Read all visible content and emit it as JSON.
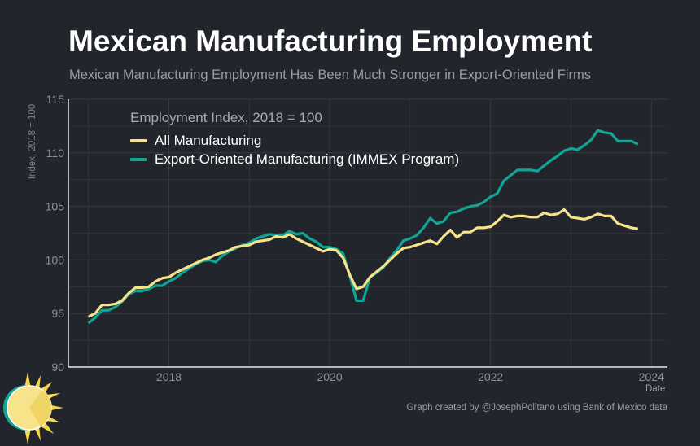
{
  "header": {
    "title": "Mexican Manufacturing Employment",
    "subtitle": "Mexican Manufacturing Employment Has Been Much Stronger in Export-Oriented Firms"
  },
  "footer": {
    "credit": "Graph created by @JosephPolitano using Bank of Mexico data"
  },
  "chart_data": {
    "type": "line",
    "title": "Mexican Manufacturing Employment",
    "subtitle": "Mexican Manufacturing Employment Has Been Much Stronger in Export-Oriented Firms",
    "xlabel": "Date",
    "ylabel": "Index, 2018 = 100",
    "legend_title": "Employment Index, 2018 = 100",
    "legend_position": "top-left",
    "grid": true,
    "x_start": "2017-01",
    "x_frequency": "monthly",
    "xlim": [
      2016.75,
      2024.2
    ],
    "ylim": [
      90,
      115
    ],
    "x_ticks": [
      2018,
      2020,
      2022,
      2024
    ],
    "x_tick_labels": [
      "2018",
      "2020",
      "2022",
      "2024"
    ],
    "y_ticks": [
      90,
      95,
      100,
      105,
      110,
      115
    ],
    "y_tick_labels": [
      "90",
      "95",
      "100",
      "105",
      "110",
      "115"
    ],
    "series": [
      {
        "name": "All Manufacturing",
        "color": "#f7e38a",
        "values": [
          94.7,
          95.0,
          95.8,
          95.8,
          95.9,
          96.2,
          96.9,
          97.4,
          97.4,
          97.5,
          98.0,
          98.3,
          98.4,
          98.8,
          99.1,
          99.4,
          99.7,
          100.0,
          100.2,
          100.5,
          100.7,
          100.9,
          101.2,
          101.3,
          101.4,
          101.7,
          101.8,
          101.9,
          102.2,
          102.1,
          102.4,
          102.0,
          101.7,
          101.4,
          101.1,
          100.8,
          101.0,
          100.9,
          100.2,
          98.6,
          97.3,
          97.5,
          98.4,
          98.9,
          99.4,
          100.0,
          100.6,
          101.1,
          101.2,
          101.4,
          101.6,
          101.8,
          101.5,
          102.2,
          102.8,
          102.1,
          102.6,
          102.6,
          103.0,
          103.0,
          103.1,
          103.6,
          104.2,
          104.0,
          104.1,
          104.1,
          104.0,
          104.0,
          104.4,
          104.2,
          104.3,
          104.7,
          104.0,
          103.9,
          103.8,
          104.0,
          104.3,
          104.1,
          104.1,
          103.4,
          103.2,
          103.0,
          102.9
        ]
      },
      {
        "name": "Export-Oriented Manufacturing (IMMEX Program)",
        "color": "#12a596",
        "values": [
          94.1,
          94.6,
          95.3,
          95.3,
          95.6,
          96.1,
          96.8,
          97.1,
          97.1,
          97.3,
          97.6,
          97.6,
          98.0,
          98.3,
          98.8,
          99.2,
          99.6,
          99.9,
          100.0,
          99.8,
          100.4,
          100.8,
          101.1,
          101.4,
          101.6,
          102.0,
          102.2,
          102.4,
          102.3,
          102.3,
          102.7,
          102.4,
          102.5,
          102.0,
          101.7,
          101.2,
          101.2,
          101.0,
          100.6,
          98.5,
          96.2,
          96.2,
          98.4,
          98.8,
          99.3,
          100.2,
          100.9,
          101.8,
          102.0,
          102.3,
          103.0,
          103.9,
          103.4,
          103.6,
          104.4,
          104.5,
          104.8,
          105.0,
          105.1,
          105.4,
          105.9,
          106.2,
          107.4,
          107.9,
          108.4,
          108.4,
          108.4,
          108.3,
          108.8,
          109.3,
          109.7,
          110.2,
          110.4,
          110.3,
          110.7,
          111.2,
          112.1,
          111.9,
          111.8,
          111.1,
          111.1,
          111.1,
          110.8
        ]
      }
    ]
  }
}
